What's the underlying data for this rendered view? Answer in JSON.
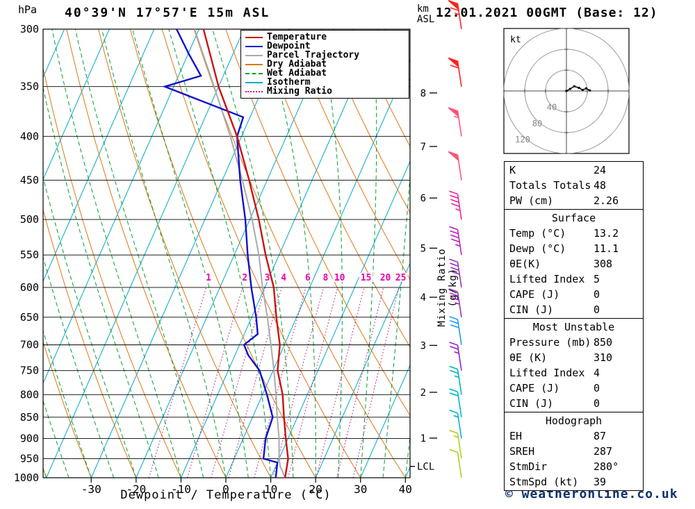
{
  "header": {
    "pressure_unit": "hPa",
    "station_title": "40°39'N 17°57'E 15m ASL",
    "altitude_unit_top": "km",
    "altitude_unit_bottom": "ASL",
    "datetime": "12.01.2021 00GMT (Base: 12)"
  },
  "legend": {
    "items": [
      {
        "label": "Temperature",
        "color": "#cc1111",
        "style": "solid"
      },
      {
        "label": "Dewpoint",
        "color": "#1111cc",
        "style": "solid"
      },
      {
        "label": "Parcel Trajectory",
        "color": "#aaaaaa",
        "style": "solid"
      },
      {
        "label": "Dry Adiabat",
        "color": "#dd7711",
        "style": "solid"
      },
      {
        "label": "Wet Adiabat",
        "color": "#00a030",
        "style": "dashed"
      },
      {
        "label": "Isotherm",
        "color": "#00a8cc",
        "style": "solid"
      },
      {
        "label": "Mixing Ratio",
        "color": "#cc0088",
        "style": "dotted"
      }
    ]
  },
  "axes": {
    "pressure_ticks": [
      300,
      350,
      400,
      450,
      500,
      550,
      600,
      650,
      700,
      750,
      800,
      850,
      900,
      950,
      1000
    ],
    "temp_ticks": [
      -30,
      -20,
      -10,
      0,
      10,
      20,
      30,
      40
    ],
    "xlabel": "Dewpoint / Temperature (°C)",
    "mixing_ratio_axis_label": "Mixing Ratio (g/kg)",
    "mixing_ratio_values": [
      1,
      2,
      3,
      4,
      6,
      8,
      10,
      15,
      20,
      25
    ],
    "km_ticks": [
      {
        "label": "1",
        "pressure": 899
      },
      {
        "label": "2",
        "pressure": 795
      },
      {
        "label": "3",
        "pressure": 701
      },
      {
        "label": "4",
        "pressure": 616
      },
      {
        "label": "5",
        "pressure": 540
      },
      {
        "label": "6",
        "pressure": 472
      },
      {
        "label": "7",
        "pressure": 411
      },
      {
        "label": "8",
        "pressure": 356
      }
    ],
    "lcl": {
      "label": "LCL",
      "pressure": 970
    }
  },
  "chart_data": {
    "type": "skewt_log_p",
    "title": "40°39'N 17°57'E 15m ASL",
    "pressure_range_hpa": [
      300,
      1000
    ],
    "temp_axis_range_c": [
      -40,
      40
    ],
    "isotherm_step_c": 10,
    "temperature_profile_p_t": [
      [
        1000,
        13.2
      ],
      [
        950,
        12
      ],
      [
        900,
        9.5
      ],
      [
        850,
        7
      ],
      [
        800,
        4.5
      ],
      [
        750,
        1
      ],
      [
        700,
        -1
      ],
      [
        650,
        -4.5
      ],
      [
        600,
        -8
      ],
      [
        550,
        -13
      ],
      [
        500,
        -18
      ],
      [
        450,
        -24
      ],
      [
        400,
        -31
      ],
      [
        350,
        -40
      ],
      [
        300,
        -49
      ]
    ],
    "dewpoint_profile_p_t": [
      [
        1000,
        11.1
      ],
      [
        960,
        10
      ],
      [
        950,
        6.5
      ],
      [
        900,
        5
      ],
      [
        850,
        4.5
      ],
      [
        800,
        1
      ],
      [
        750,
        -3
      ],
      [
        720,
        -7
      ],
      [
        700,
        -9
      ],
      [
        680,
        -7
      ],
      [
        650,
        -9
      ],
      [
        600,
        -13
      ],
      [
        550,
        -17
      ],
      [
        500,
        -21
      ],
      [
        450,
        -26
      ],
      [
        400,
        -31
      ],
      [
        380,
        -31.5
      ],
      [
        350,
        -52
      ],
      [
        340,
        -45
      ],
      [
        320,
        -50
      ],
      [
        300,
        -55
      ]
    ],
    "parcel_profile_p_t": [
      [
        1000,
        13.2
      ],
      [
        970,
        11
      ],
      [
        950,
        10
      ],
      [
        900,
        8
      ],
      [
        850,
        5.5
      ],
      [
        800,
        3
      ],
      [
        750,
        0.2
      ],
      [
        700,
        -3
      ],
      [
        650,
        -6.5
      ],
      [
        600,
        -10.5
      ],
      [
        550,
        -14.5
      ],
      [
        500,
        -19.5
      ],
      [
        450,
        -25.5
      ],
      [
        400,
        -32.5
      ],
      [
        350,
        -41
      ],
      [
        300,
        -51
      ]
    ],
    "wind_barbs": [
      {
        "pressure": 300,
        "speed_kt": 65,
        "color": "#ff2222"
      },
      {
        "pressure": 350,
        "speed_kt": 60,
        "color": "#ff2222"
      },
      {
        "pressure": 400,
        "speed_kt": 55,
        "color": "#ff5577"
      },
      {
        "pressure": 450,
        "speed_kt": 50,
        "color": "#ff5577"
      },
      {
        "pressure": 500,
        "speed_kt": 45,
        "color": "#ee22aa"
      },
      {
        "pressure": 550,
        "speed_kt": 45,
        "color": "#bb22bb"
      },
      {
        "pressure": 600,
        "speed_kt": 40,
        "color": "#9933bb"
      },
      {
        "pressure": 650,
        "speed_kt": 35,
        "color": "#9933bb"
      },
      {
        "pressure": 700,
        "speed_kt": 30,
        "color": "#2299ff"
      },
      {
        "pressure": 750,
        "speed_kt": 25,
        "color": "#9922cc"
      },
      {
        "pressure": 800,
        "speed_kt": 25,
        "color": "#00b5b5"
      },
      {
        "pressure": 850,
        "speed_kt": 20,
        "color": "#00b5d5"
      },
      {
        "pressure": 900,
        "speed_kt": 15,
        "color": "#00b5d5"
      },
      {
        "pressure": 950,
        "speed_kt": 15,
        "color": "#b5cc22"
      },
      {
        "pressure": 1000,
        "speed_kt": 10,
        "color": "#b5cc22"
      }
    ],
    "colors": {
      "temperature": "#cc1111",
      "dewpoint": "#1111cc",
      "parcel": "#aaaaaa",
      "dry_adiabat": "#dd7711",
      "wet_adiabat": "#00a030",
      "isotherm": "#00a8cc",
      "mixing_ratio": "#bb0077",
      "mixing_label": "#ee00aa",
      "grid": "#000000"
    }
  },
  "hodograph": {
    "unit_label": "kt",
    "rings_kt": [
      40,
      80,
      120
    ],
    "ring_labels": [
      "40",
      "80",
      "120"
    ],
    "trace_kt": [
      [
        0,
        0
      ],
      [
        7,
        4
      ],
      [
        15,
        9
      ],
      [
        24,
        6
      ],
      [
        31,
        2
      ],
      [
        38,
        5
      ],
      [
        45,
        1
      ]
    ]
  },
  "table": {
    "sections": [
      {
        "rows": [
          [
            "K",
            "24"
          ],
          [
            "Totals Totals",
            "48"
          ],
          [
            "PW (cm)",
            "2.26"
          ]
        ]
      },
      {
        "header": "Surface",
        "rows": [
          [
            "Temp (°C)",
            "13.2"
          ],
          [
            "Dewp (°C)",
            "11.1"
          ],
          [
            "θE(K)",
            "308"
          ],
          [
            "Lifted Index",
            "5"
          ],
          [
            "CAPE (J)",
            "0"
          ],
          [
            "CIN (J)",
            "0"
          ]
        ]
      },
      {
        "header": "Most Unstable",
        "rows": [
          [
            "Pressure (mb)",
            "850"
          ],
          [
            "θE (K)",
            "310"
          ],
          [
            "Lifted Index",
            "4"
          ],
          [
            "CAPE (J)",
            "0"
          ],
          [
            "CIN (J)",
            "0"
          ]
        ]
      },
      {
        "header": "Hodograph",
        "rows": [
          [
            "EH",
            "87"
          ],
          [
            "SREH",
            "287"
          ],
          [
            "StmDir",
            "280°"
          ],
          [
            "StmSpd (kt)",
            "39"
          ]
        ]
      }
    ]
  },
  "footer": {
    "credit": "© weatheronline.co.uk"
  }
}
